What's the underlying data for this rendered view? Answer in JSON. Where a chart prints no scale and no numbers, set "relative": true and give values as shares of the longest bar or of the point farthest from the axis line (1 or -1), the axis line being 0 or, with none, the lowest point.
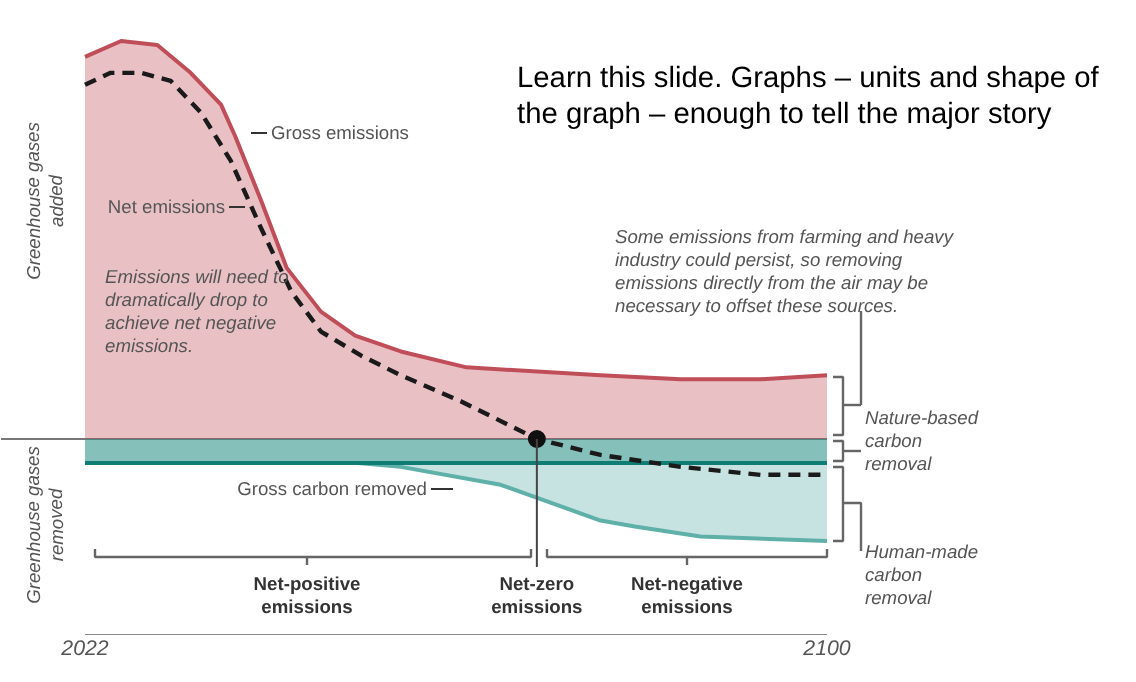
{
  "chart_data": {
    "type": "area",
    "title": "Learn this slide. Graphs – units and shape of the graph – enough to tell the major story",
    "relative": true,
    "xlim": [
      2022,
      2100
    ],
    "xticks": [
      2022,
      2100
    ],
    "grid": false,
    "series": [
      {
        "name": "Gross emissions",
        "color": "#c04e59",
        "x": [
          2022,
          2025.8,
          2029.6,
          2033.1,
          2036.3,
          2037.8,
          2040.5,
          2043.2,
          2046.8,
          2050.4,
          2055.2,
          2062.1,
          2076.2,
          2084.6,
          2093,
          2100
        ],
        "values": [
          0.96,
          1.0,
          0.99,
          0.92,
          0.84,
          0.76,
          0.6,
          0.43,
          0.32,
          0.26,
          0.22,
          0.18,
          0.16,
          0.15,
          0.15,
          0.16
        ]
      },
      {
        "name": "Gross carbon removed",
        "color": "#5fb0a8",
        "x": [
          2022,
          2050.4,
          2055.2,
          2065.7,
          2076.2,
          2079.8,
          2086.7,
          2100
        ],
        "values": [
          -0.06,
          -0.06,
          -0.07,
          -0.115,
          -0.205,
          -0.22,
          -0.245,
          -0.256
        ]
      },
      {
        "name": "Nature-based carbon removal",
        "color": "#0f7d74",
        "x": [
          2022,
          2100
        ],
        "values": [
          -0.06,
          -0.06
        ]
      },
      {
        "name": "Net emissions",
        "type": "line",
        "line_style": "dashed",
        "color": "#1a1a1a",
        "x": [
          2022,
          2024.7,
          2027.9,
          2031.0,
          2034.2,
          2037.3,
          2040.5,
          2043.7,
          2046.8,
          2051,
          2055.2,
          2061.5,
          2069.5,
          2076.2,
          2084.6,
          2093,
          2100
        ],
        "values": [
          0.89,
          0.92,
          0.92,
          0.9,
          0.82,
          0.7,
          0.53,
          0.37,
          0.27,
          0.21,
          0.16,
          0.095,
          0,
          -0.04,
          -0.07,
          -0.09,
          -0.09
        ]
      }
    ],
    "annotations": [
      {
        "text": "Net-zero emissions",
        "x": 2069.5,
        "y": 0
      },
      "Emissions will need to dramatically drop to achieve net negative emissions.",
      "Some emissions from farming and heavy industry could persist, so removing emissions directly from the air may be necessary to offset these sources.",
      "Human-made carbon removal",
      "Net-positive emissions",
      "Net-negative emissions",
      "Greenhouse gases added",
      "Greenhouse gases removed"
    ]
  }
}
